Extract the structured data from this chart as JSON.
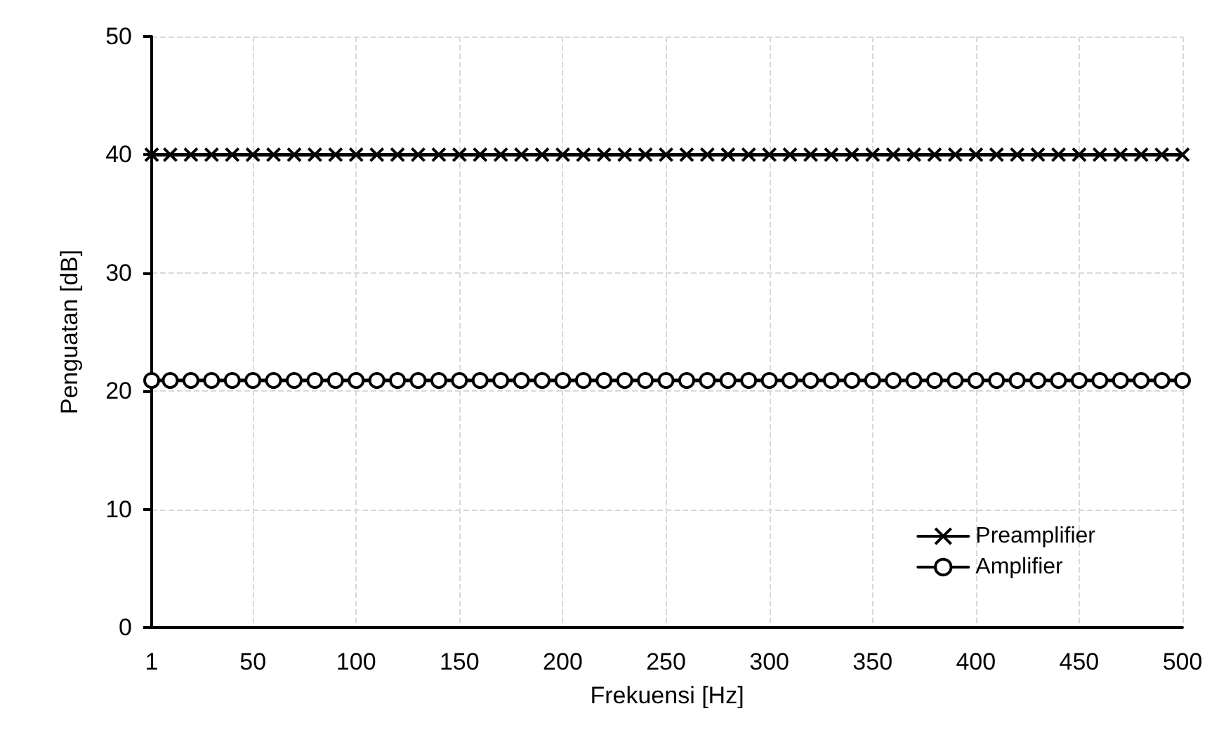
{
  "chart_data": {
    "type": "line",
    "xlabel": "Frekuensi [Hz]",
    "ylabel": "Penguatan [dB]",
    "x": [
      1,
      10,
      20,
      30,
      40,
      50,
      60,
      70,
      80,
      90,
      100,
      110,
      120,
      130,
      140,
      150,
      160,
      170,
      180,
      190,
      200,
      210,
      220,
      230,
      240,
      250,
      260,
      270,
      280,
      290,
      300,
      310,
      320,
      330,
      340,
      350,
      360,
      370,
      380,
      390,
      400,
      410,
      420,
      430,
      440,
      450,
      460,
      470,
      480,
      490,
      500
    ],
    "series": [
      {
        "name": "Preamplifier",
        "color": "#000000",
        "marker": "cross",
        "values": [
          40,
          40,
          40,
          40,
          40,
          40,
          40,
          40,
          40,
          40,
          40,
          40,
          40,
          40,
          40,
          40,
          40,
          40,
          40,
          40,
          40,
          40,
          40,
          40,
          40,
          40,
          40,
          40,
          40,
          40,
          40,
          40,
          40,
          40,
          40,
          40,
          40,
          40,
          40,
          40,
          40,
          40,
          40,
          40,
          40,
          40,
          40,
          40,
          40,
          40,
          40
        ]
      },
      {
        "name": "Amplifier",
        "color": "#000000",
        "marker": "circle",
        "values": [
          20.9,
          20.9,
          20.9,
          20.9,
          20.9,
          20.9,
          20.9,
          20.9,
          20.9,
          20.9,
          20.9,
          20.9,
          20.9,
          20.9,
          20.9,
          20.9,
          20.9,
          20.9,
          20.9,
          20.9,
          20.9,
          20.9,
          20.9,
          20.9,
          20.9,
          20.9,
          20.9,
          20.9,
          20.9,
          20.9,
          20.9,
          20.9,
          20.9,
          20.9,
          20.9,
          20.9,
          20.9,
          20.9,
          20.9,
          20.9,
          20.9,
          20.9,
          20.9,
          20.9,
          20.9,
          20.9,
          20.9,
          20.9,
          20.9,
          20.9,
          20.9
        ]
      }
    ],
    "xlim": [
      1,
      500
    ],
    "xticks": [
      1,
      50,
      100,
      150,
      200,
      250,
      300,
      350,
      400,
      450,
      500
    ],
    "ylim": [
      0,
      50
    ],
    "yticks": [
      0,
      10,
      20,
      30,
      40,
      50
    ],
    "grid": true,
    "legend": "bottom right",
    "line_style": "solid"
  }
}
